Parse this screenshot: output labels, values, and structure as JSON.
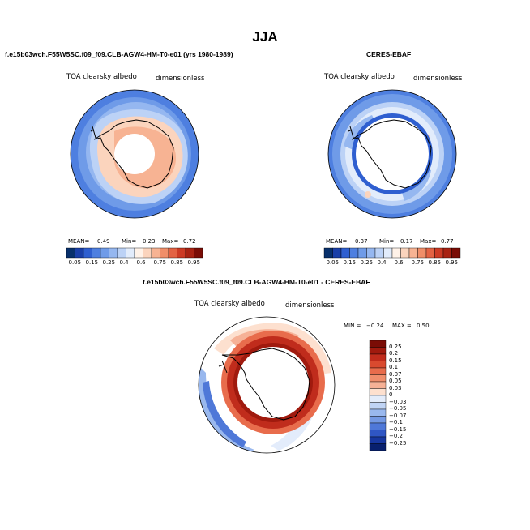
{
  "title": "JJA",
  "panels": [
    {
      "id": "model",
      "title": "f.e15b03wch.F55W5SC.f09_f09.CLB-AGW4-HM-T0-e01 (yrs 1980-1989)",
      "variable": "TOA clearsky albedo",
      "units": "dimensionless",
      "stats": {
        "mean_label": "MEAN=",
        "mean": "0.49",
        "min_label": "Min=",
        "min": "0.23",
        "max_label": "Max=",
        "max": "0.72"
      }
    },
    {
      "id": "obs",
      "title": "CERES-EBAF",
      "variable": "TOA clearsky albedo",
      "units": "dimensionless",
      "stats": {
        "mean_label": "MEAN=",
        "mean": "0.37",
        "min_label": "Min=",
        "min": "0.17",
        "max_label": "Max=",
        "max": "0.77"
      }
    },
    {
      "id": "diff",
      "title": "f.e15b03wch.F55W5SC.f09_f09.CLB-AGW4-HM-T0-e01 - CERES-EBAF",
      "variable": "TOA clearsky albedo",
      "units": "dimensionless",
      "stats": {
        "min_label": "MIN =",
        "min": "−0.24",
        "max_label": "MAX =",
        "max": "0.50"
      }
    }
  ],
  "colorbar_abs": {
    "labels": [
      "0.05",
      "0.15",
      "0.25",
      "0.4",
      "0.6",
      "0.75",
      "0.85",
      "0.95"
    ],
    "colors": [
      "#08306b",
      "#1a3fa8",
      "#2f5fd0",
      "#4e7fe0",
      "#6f9be8",
      "#95b7f0",
      "#bcd2f6",
      "#e2ecfb",
      "#fff2e8",
      "#fbd4bd",
      "#f7b393",
      "#f08e69",
      "#e36243",
      "#cc3a24",
      "#a82212",
      "#7a0c05"
    ]
  },
  "colorbar_diff": {
    "labels": [
      "0.25",
      "0.2",
      "0.15",
      "0.1",
      "0.07",
      "0.05",
      "0.03",
      "0",
      "−0.03",
      "−0.05",
      "−0.07",
      "−0.1",
      "−0.15",
      "−0.2",
      "−0.25"
    ],
    "colors": [
      "#7a0c05",
      "#a01a0e",
      "#c02c1c",
      "#d94a2f",
      "#e86c4c",
      "#f08e6c",
      "#f6b196",
      "#fde0cf",
      "#e3ecfb",
      "#c0d4f5",
      "#99b8ee",
      "#7499e4",
      "#4f78d8",
      "#2f56c4",
      "#1737a0",
      "#08206e"
    ]
  },
  "colors": {
    "land_outline": "#000000",
    "missing": "#ffffff"
  }
}
